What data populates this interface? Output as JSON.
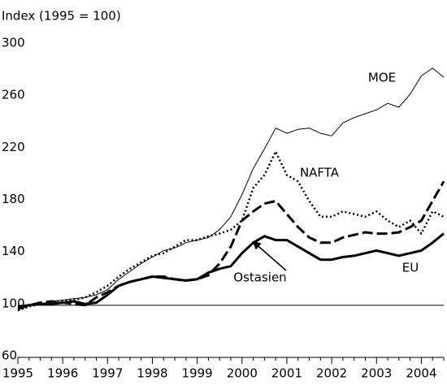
{
  "chart_data": {
    "type": "line",
    "ylabel": "Index (1995 = 100)",
    "x": [
      1995,
      1995.25,
      1995.5,
      1995.75,
      1996,
      1996.25,
      1996.5,
      1996.75,
      1997,
      1997.25,
      1997.5,
      1997.75,
      1998,
      1998.25,
      1998.5,
      1998.75,
      1999,
      1999.25,
      1999.5,
      1999.75,
      2000,
      2000.25,
      2000.5,
      2000.75,
      2001,
      2001.25,
      2001.5,
      2001.75,
      2002,
      2002.25,
      2002.5,
      2002.75,
      2003,
      2003.25,
      2003.5,
      2003.75,
      2004,
      2004.25,
      2004.5
    ],
    "series": [
      {
        "name": "MOE",
        "color": "#000000",
        "linestyle": "solid",
        "linewidth": 1,
        "values": [
          98,
          100,
          101,
          103,
          104,
          105,
          106,
          108,
          112,
          120,
          126,
          132,
          137,
          142,
          144,
          148,
          150,
          152,
          158,
          168,
          185,
          205,
          220,
          236,
          232,
          235,
          236,
          232,
          230,
          240,
          244,
          247,
          250,
          255,
          252,
          262,
          276,
          282,
          275
        ]
      },
      {
        "name": "NAFTA",
        "color": "#000000",
        "linestyle": "dotted",
        "linewidth": 2.5,
        "values": [
          96,
          99,
          101,
          102,
          103,
          104,
          106,
          110,
          115,
          122,
          128,
          133,
          138,
          140,
          145,
          150,
          150,
          153,
          155,
          158,
          165,
          190,
          200,
          218,
          200,
          195,
          180,
          168,
          168,
          172,
          170,
          168,
          172,
          165,
          160,
          165,
          155,
          172,
          168
        ]
      },
      {
        "name": "Ostasien",
        "color": "#000000",
        "linestyle": "dashed",
        "linewidth": 3,
        "values": [
          97,
          100,
          102,
          103,
          102,
          101,
          100,
          106,
          110,
          115,
          118,
          120,
          122,
          122,
          120,
          119,
          120,
          123,
          132,
          145,
          165,
          172,
          178,
          180,
          170,
          160,
          152,
          148,
          148,
          152,
          154,
          156,
          155,
          155,
          156,
          160,
          165,
          180,
          195
        ]
      },
      {
        "name": "EU",
        "color": "#000000",
        "linestyle": "solid",
        "linewidth": 3,
        "values": [
          99,
          100,
          101,
          101,
          102,
          103,
          101,
          102,
          108,
          115,
          118,
          120,
          122,
          121,
          120,
          119,
          120,
          125,
          128,
          130,
          140,
          148,
          153,
          150,
          150,
          145,
          140,
          135,
          135,
          137,
          138,
          140,
          142,
          140,
          138,
          140,
          142,
          148,
          155
        ]
      }
    ],
    "xlim": [
      1995,
      2004.5
    ],
    "xticks": [
      1995,
      1996,
      1997,
      1998,
      1999,
      2000,
      2001,
      2002,
      2003,
      2004
    ],
    "ylim": [
      60,
      300
    ],
    "yticks": [
      60,
      100,
      140,
      180,
      220,
      260,
      300
    ],
    "hline": 100
  }
}
